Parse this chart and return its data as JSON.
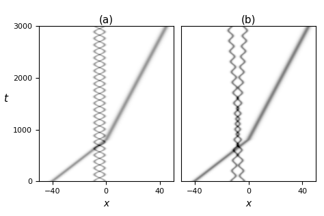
{
  "xlim": [
    -50,
    50
  ],
  "ylim": [
    0,
    3000
  ],
  "xticks": [
    -40,
    0,
    40
  ],
  "yticks": [
    0,
    1000,
    2000,
    3000
  ],
  "xlabel": "x",
  "ylabel": "t",
  "panel_a_label": "(a)",
  "panel_b_label": "(b)",
  "background_color": "#ffffff",
  "x_range": [
    -50,
    50
  ],
  "t_range": [
    0,
    3000
  ],
  "figsize": [
    4.74,
    3.16
  ],
  "dpi": 100,
  "colormap": "gray_r",
  "nx": 800,
  "nt": 800
}
